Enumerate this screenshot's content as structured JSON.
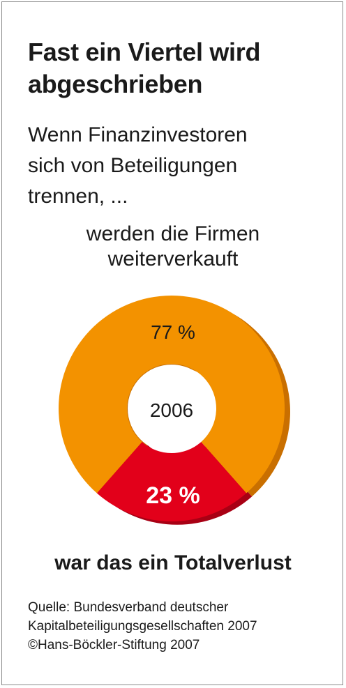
{
  "title_lines": [
    "Fast ein Viertel wird",
    "abgeschrieben"
  ],
  "subtitle_lines": [
    "Wenn Finanzinvestoren",
    "sich von Beteiligungen",
    "trennen, ..."
  ],
  "top_label_lines": [
    "werden die Firmen",
    "weiterverkauft"
  ],
  "bottom_label": "war das ein Totalverlust",
  "center_label": "2006",
  "source_lines": [
    "Quelle: Bundesverband deutscher",
    "Kapitalbeteiligungsgesellschaften 2007",
    "©Hans-Böckler-Stiftung 2007"
  ],
  "colors": {
    "orange": "#f39200",
    "orange_shadow": "#c96f00",
    "red": "#e2001a",
    "red_shadow": "#a80014",
    "text": "#1a1a1a",
    "label_on_red": "#ffffff"
  },
  "chart_data": {
    "type": "pie",
    "style": "donut",
    "categories": [
      "weiterverkauft",
      "Totalverlust"
    ],
    "values": [
      77,
      23
    ],
    "labels": [
      "77 %",
      "23 %"
    ],
    "center_text": "2006"
  }
}
